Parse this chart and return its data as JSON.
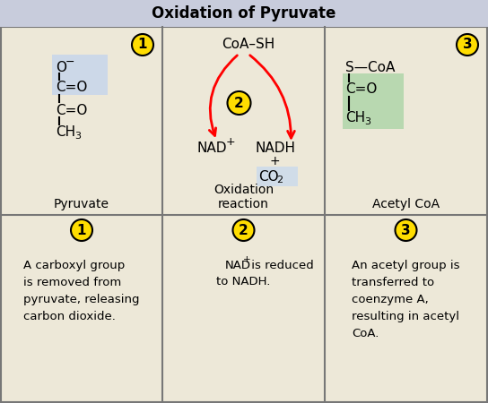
{
  "title": "Oxidation of Pyruvate",
  "title_bg": "#c8ccdc",
  "cell_bg": "#ede8d8",
  "border_color": "#777777",
  "figsize": [
    5.44,
    4.5
  ],
  "dpi": 100,
  "yellow_circle_color": "#ffdd00",
  "yellow_circle_edgecolor": "#000000",
  "blue_highlight": "#ccd8e8",
  "green_highlight": "#b8d8b0",
  "co2_highlight": "#d0dce8",
  "cell_labels": [
    "Pyruvate",
    "Oxidation\nreaction",
    "Acetyl CoA"
  ],
  "bottom_labels": [
    "A carboxyl group\nis removed from\npyruvate, releasing\ncarbon dioxide.",
    "NAD⁺ is reduced\nto NADH.",
    "An acetyl group is\ntransferred to\ncoenzyme A,\nresulting in acetyl\nCoA."
  ],
  "step_numbers": [
    "1",
    "2",
    "3"
  ]
}
